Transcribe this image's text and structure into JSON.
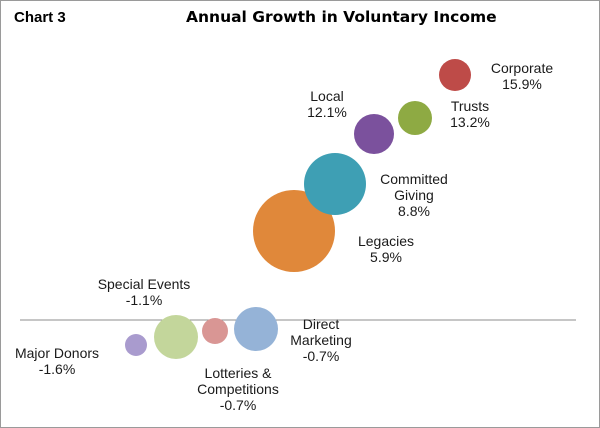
{
  "chart_label": "Chart 3",
  "title": "Annual Growth in Voluntary Income",
  "chart_data": {
    "type": "scatter",
    "title": "Annual Growth in Voluntary Income",
    "xlabel": "",
    "ylabel": "",
    "grid": false,
    "points": [
      {
        "label_lines": [
          "Major Donors"
        ],
        "value_text": "-1.6%",
        "y": -1.6,
        "color": "#a99bce"
      },
      {
        "label_lines": [
          "Special Events"
        ],
        "value_text": "-1.1%",
        "y": -1.1,
        "color": "#c3d69b"
      },
      {
        "label_lines": [
          "Lotteries &",
          "Competitions"
        ],
        "value_text": "-0.7%",
        "y": -0.7,
        "color": "#d99694"
      },
      {
        "label_lines": [
          "Direct",
          "Marketing"
        ],
        "value_text": "-0.7%",
        "y": -0.7,
        "color": "#95b3d7"
      },
      {
        "label_lines": [
          "Legacies"
        ],
        "value_text": "5.9%",
        "y": 5.9,
        "color": "#e0883a"
      },
      {
        "label_lines": [
          "Committed",
          "Giving"
        ],
        "value_text": "8.8%",
        "y": 8.8,
        "color": "#3e9fb4"
      },
      {
        "label_lines": [
          "Local"
        ],
        "value_text": "12.1%",
        "y": 12.1,
        "color": "#7b519d"
      },
      {
        "label_lines": [
          "Trusts"
        ],
        "value_text": "13.2%",
        "y": 13.2,
        "color": "#8eaa43"
      },
      {
        "label_lines": [
          "Corporate"
        ],
        "value_text": "15.9%",
        "y": 15.9,
        "color": "#be4b48"
      }
    ]
  }
}
